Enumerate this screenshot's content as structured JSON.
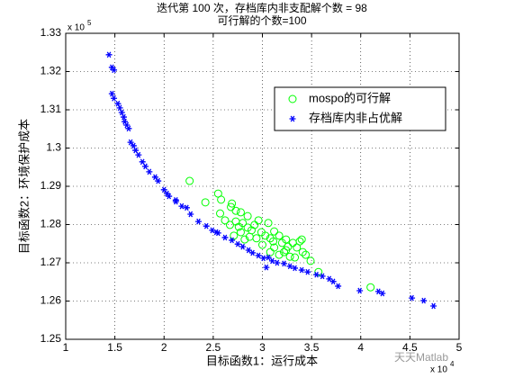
{
  "chart_data": {
    "type": "scatter",
    "title": "迭代第 100 次，存档库内非支配解个数 = 98",
    "subtitle": "可行解的个数=100",
    "x_label": "目标函数1：运行成本",
    "y_label": "目标函数2：环境保护成本",
    "x_exponent": {
      "base": "x 10",
      "power": "4"
    },
    "y_exponent": {
      "base": "x 10",
      "power": "5"
    },
    "watermark": "天天Matlab",
    "xlim": [
      1,
      5
    ],
    "ylim": [
      1.25,
      1.33
    ],
    "xticks": [
      1,
      1.5,
      2,
      2.5,
      3,
      3.5,
      4,
      4.5,
      5
    ],
    "yticks": [
      1.25,
      1.26,
      1.27,
      1.28,
      1.29,
      1.3,
      1.31,
      1.32,
      1.33
    ],
    "grid": true,
    "legend": "upper right",
    "series": [
      {
        "name": "mospo的可行解",
        "color": "#00ff00",
        "marker": "circle",
        "x": [
          2.26,
          2.55,
          2.58,
          2.42,
          2.68,
          2.69,
          2.73,
          2.78,
          2.57,
          2.62,
          2.67,
          2.85,
          2.73,
          2.76,
          2.8,
          2.85,
          2.89,
          2.78,
          2.96,
          2.92,
          2.99,
          3.03,
          3.06,
          3.08,
          3.11,
          3.12,
          3.17,
          3.2,
          3.24,
          3.26,
          3.31,
          3.35,
          3.38,
          3.41,
          3.44,
          3.49,
          3.4,
          3.22,
          3.28,
          3.12,
          3.0,
          2.94,
          2.87,
          2.82,
          2.71,
          3.57,
          4.1,
          3.24,
          3.33,
          3.17,
          3.08
        ],
        "y": [
          1.2914,
          1.2881,
          1.2865,
          1.2858,
          1.2846,
          1.2855,
          1.2836,
          1.2832,
          1.2829,
          1.2811,
          1.2799,
          1.2822,
          1.2808,
          1.2794,
          1.2804,
          1.2792,
          1.2785,
          1.278,
          1.2811,
          1.2799,
          1.278,
          1.2771,
          1.2804,
          1.2764,
          1.2756,
          1.2782,
          1.2771,
          1.2752,
          1.2761,
          1.2742,
          1.2752,
          1.274,
          1.2756,
          1.2728,
          1.2721,
          1.2705,
          1.2761,
          1.2728,
          1.2716,
          1.274,
          1.2747,
          1.2764,
          1.2768,
          1.2761,
          1.2771,
          1.2676,
          1.2636,
          1.2733,
          1.2714,
          1.2721,
          1.2728
        ]
      },
      {
        "name": "存档库内非占优解",
        "color": "#0000ff",
        "marker": "asterisk",
        "x": [
          1.44,
          1.47,
          1.49,
          1.47,
          1.49,
          1.53,
          1.55,
          1.57,
          1.59,
          1.6,
          1.62,
          1.64,
          1.66,
          1.69,
          1.71,
          1.74,
          1.78,
          1.81,
          1.85,
          1.91,
          1.94,
          2.0,
          2.05,
          2.12,
          2.18,
          2.23,
          2.27,
          2.35,
          2.43,
          2.49,
          2.55,
          2.62,
          2.69,
          2.75,
          2.8,
          2.86,
          2.9,
          2.96,
          3.01,
          3.04,
          3.1,
          3.15,
          3.22,
          3.28,
          3.33,
          3.4,
          3.46,
          3.55,
          3.61,
          3.68,
          3.77,
          3.99,
          4.18,
          4.22,
          4.52,
          4.64,
          4.74,
          2.03,
          2.12,
          2.53,
          3.06,
          3.72
        ],
        "y": [
          1.3244,
          1.3211,
          1.3204,
          1.3142,
          1.313,
          1.3116,
          1.3105,
          1.3093,
          1.3081,
          1.3069,
          1.306,
          1.3051,
          1.3015,
          1.3006,
          1.2994,
          1.2982,
          1.2964,
          1.2952,
          1.2938,
          1.2924,
          1.2914,
          1.2891,
          1.2874,
          1.286,
          1.2848,
          1.2844,
          1.2827,
          1.2808,
          1.2796,
          1.2785,
          1.2778,
          1.2766,
          1.2759,
          1.2749,
          1.2742,
          1.2733,
          1.2726,
          1.2719,
          1.2712,
          1.2688,
          1.2705,
          1.27,
          1.2698,
          1.2691,
          1.2686,
          1.2681,
          1.2676,
          1.2669,
          1.2665,
          1.2658,
          1.2639,
          1.2627,
          1.2625,
          1.262,
          1.2608,
          1.2601,
          1.2587,
          1.2881,
          1.2864,
          1.278,
          1.2714,
          1.2651
        ]
      }
    ]
  }
}
